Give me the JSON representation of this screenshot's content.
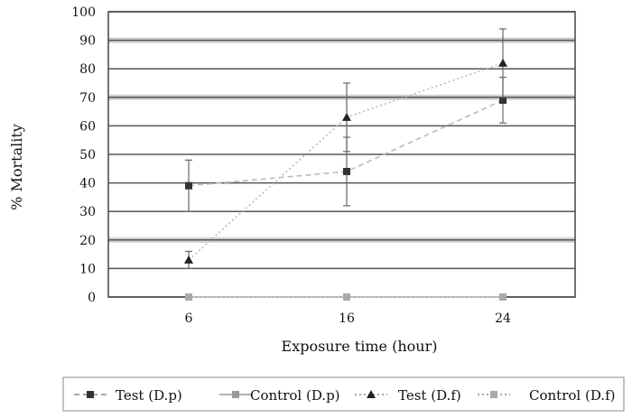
{
  "chart_data": {
    "type": "line",
    "title": "",
    "xlabel": "Exposure time (hour)",
    "ylabel": "% Mortality",
    "x_categories": [
      "6",
      "16",
      "24"
    ],
    "ylim": [
      0,
      100
    ],
    "yticks": [
      0,
      10,
      20,
      30,
      40,
      50,
      60,
      70,
      80,
      90,
      100
    ],
    "grid": true,
    "legend_position": "bottom",
    "series": [
      {
        "name": "Test (D.p)",
        "values": [
          39,
          44,
          69
        ],
        "error": [
          9,
          12,
          8
        ],
        "color": "#333333",
        "line_color": "#bbbbbb",
        "marker": "filled-square",
        "dash": "dashed"
      },
      {
        "name": "Control (D.p)",
        "values": [
          0,
          0,
          0
        ],
        "error": [
          0,
          0,
          0
        ],
        "color": "#999999",
        "line_color": "#c8c8c8",
        "marker": "grey-square",
        "dash": "solid"
      },
      {
        "name": "Test (D.f)",
        "values": [
          13,
          63,
          82
        ],
        "error": [
          3,
          12,
          12
        ],
        "color": "#222222",
        "line_color": "#bbbbbb",
        "marker": "filled-triangle",
        "dash": "dotted"
      },
      {
        "name": "Control (D.f)",
        "values": [
          0,
          0,
          0
        ],
        "error": [
          0,
          0,
          0
        ],
        "color": "#aaaaaa",
        "line_color": "#d0d0d0",
        "marker": "light-square",
        "dash": "dotted"
      }
    ]
  }
}
